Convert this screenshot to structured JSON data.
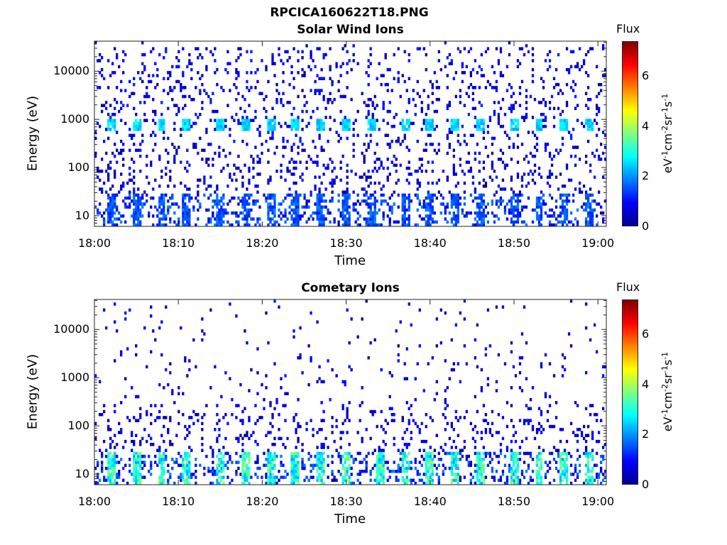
{
  "figure": {
    "suptitle": "RPCICA160622T18.PNG"
  },
  "colorbar": {
    "title": "Flux",
    "label_parts": [
      "eV",
      "-1",
      "cm",
      "-2",
      "sr",
      "-1",
      "s",
      "-1"
    ],
    "ticks": [
      "0",
      "2",
      "4",
      "6"
    ],
    "range": [
      0,
      7.4
    ],
    "colormap": "jet"
  },
  "chart_data": [
    {
      "type": "heatmap",
      "title": "Solar Wind Ions",
      "xlabel": "Time",
      "ylabel": "Energy (eV)",
      "x_tick_labels": [
        "18:00",
        "18:10",
        "18:20",
        "18:30",
        "18:40",
        "18:50",
        "19:00"
      ],
      "y_tick_labels": [
        "10",
        "100",
        "1000",
        "10000"
      ],
      "y_scale": "log",
      "xlim": [
        "18:00",
        "19:01"
      ],
      "ylim": [
        6,
        42000
      ],
      "features": {
        "periodic_peak_energy_eV": 800,
        "peak_flux_level": 2.5,
        "peak_times": [
          "18:02",
          "18:05",
          "18:08",
          "18:11",
          "18:15",
          "18:18",
          "18:21",
          "18:24",
          "18:27",
          "18:30",
          "18:33",
          "18:37",
          "18:40",
          "18:43",
          "18:46",
          "18:50",
          "18:53",
          "18:56",
          "18:59"
        ],
        "low_energy_band_eV": [
          6,
          30
        ],
        "low_energy_flux_level": 1.5,
        "background_flux_level": 0.5
      }
    },
    {
      "type": "heatmap",
      "title": "Cometary Ions",
      "xlabel": "Time",
      "ylabel": "Energy (eV)",
      "x_tick_labels": [
        "18:00",
        "18:10",
        "18:20",
        "18:30",
        "18:40",
        "18:50",
        "19:00"
      ],
      "y_tick_labels": [
        "10",
        "100",
        "1000",
        "10000"
      ],
      "y_scale": "log",
      "xlim": [
        "18:00",
        "19:01"
      ],
      "ylim": [
        6,
        42000
      ],
      "features": {
        "low_energy_band_eV": [
          6,
          28
        ],
        "low_energy_flux_level": 3,
        "burst_times": [
          "18:02",
          "18:05",
          "18:08",
          "18:11",
          "18:15",
          "18:18",
          "18:21",
          "18:24",
          "18:27",
          "18:30",
          "18:34",
          "18:37",
          "18:40",
          "18:43",
          "18:46",
          "18:50",
          "18:53",
          "18:56",
          "18:59"
        ],
        "background_flux_level": 0.5
      }
    }
  ]
}
